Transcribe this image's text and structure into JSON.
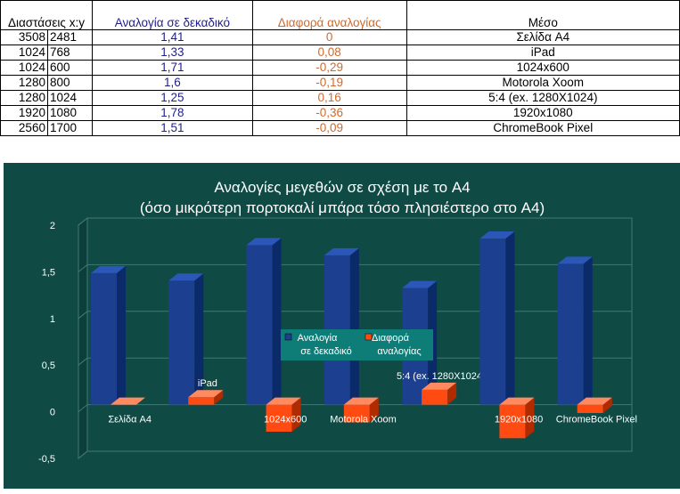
{
  "table": {
    "header": {
      "dims": "Διαστάσεις x:y",
      "ratio": "Αναλογία σε δεκαδικό",
      "diff": "Διαφορά αναλογίας",
      "medium": "Μέσο"
    },
    "rows": [
      {
        "x": "3508",
        "y": "2481",
        "ratio": "1,41",
        "diff": "0",
        "medium": "Σελίδα A4"
      },
      {
        "x": "1024",
        "y": "768",
        "ratio": "1,33",
        "diff": "0,08",
        "medium": "iPad"
      },
      {
        "x": "1024",
        "y": "600",
        "ratio": "1,71",
        "diff": "-0,29",
        "medium": "1024x600"
      },
      {
        "x": "1280",
        "y": "800",
        "ratio": "1,6",
        "diff": "-0,19",
        "medium": "Motorola Xoom"
      },
      {
        "x": "1280",
        "y": "1024",
        "ratio": "1,25",
        "diff": "0,16",
        "medium": "5:4 (ex. 1280X1024)"
      },
      {
        "x": "1920",
        "y": "1080",
        "ratio": "1,78",
        "diff": "-0,36",
        "medium": "1920x1080"
      },
      {
        "x": "2560",
        "y": "1700",
        "ratio": "1,51",
        "diff": "-0,09",
        "medium": "ChromeBook Pixel"
      }
    ]
  },
  "chart_data": {
    "type": "bar",
    "title": "Αναλογίες μεγεθών σε σχέση με το A4",
    "subtitle": "(όσο μικρότερη πορτοκαλί μπάρα τόσο πλησιέστερο στο A4)",
    "categories": [
      "Σελίδα A4",
      "iPad",
      "1024x600",
      "Motorola Xoom",
      "5:4 (ex. 1280X1024)",
      "1920x1080",
      "ChromeBook Pixel"
    ],
    "series": [
      {
        "name": "Αναλογία σε δεκαδικό",
        "values": [
          1.41,
          1.33,
          1.71,
          1.6,
          1.25,
          1.78,
          1.51
        ]
      },
      {
        "name": "Διαφορά αναλογίας",
        "values": [
          0,
          0.08,
          -0.29,
          -0.19,
          0.16,
          -0.36,
          -0.09
        ]
      }
    ],
    "ylim": [
      -0.5,
      2
    ],
    "yticks": [
      "-0,5",
      "0",
      "0,5",
      "1",
      "1,5",
      "2"
    ],
    "grid": true,
    "legend": "center",
    "legend_labels": [
      {
        "line1": "Αναλογία",
        "line2": "σε δεκαδικό"
      },
      {
        "line1": "Διαφορά",
        "line2": "αναλογίας"
      }
    ],
    "colors": {
      "background": "#0f4a45",
      "series1": "#1c3f8f",
      "series2": "#ff4a12",
      "legend_bg": "#0e7d78",
      "text": "#ffffff"
    }
  }
}
